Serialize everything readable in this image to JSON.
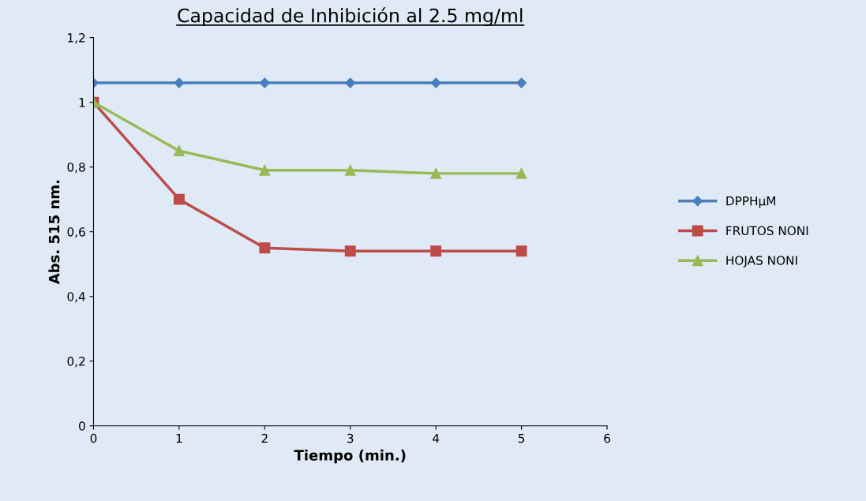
{
  "chart_data": {
    "type": "line",
    "title": "Capacidad de Inhibición al 2.5 mg/ml",
    "xlabel": "Tiempo (min.)",
    "ylabel": "Abs. 515 nm.",
    "x": [
      0,
      1,
      2,
      3,
      4,
      5
    ],
    "series": [
      {
        "name": "DPPHμM",
        "color": "#4a7ebb",
        "marker": "diamond",
        "values": [
          1.06,
          1.06,
          1.06,
          1.06,
          1.06,
          1.06
        ]
      },
      {
        "name": "FRUTOS NONI",
        "color": "#be4b48",
        "marker": "square",
        "values": [
          1.0,
          0.7,
          0.55,
          0.54,
          0.54,
          0.54
        ]
      },
      {
        "name": "HOJAS NONI",
        "color": "#98b954",
        "marker": "triangle",
        "values": [
          1.0,
          0.85,
          0.79,
          0.79,
          0.78,
          0.78
        ]
      }
    ],
    "xlim": [
      0,
      6
    ],
    "xticks": [
      0,
      1,
      2,
      3,
      4,
      5,
      6
    ],
    "ylim": [
      0,
      1.2
    ],
    "yticks": [
      0,
      {
        "value": 0.2,
        "label": "0,2"
      },
      {
        "value": 0.4,
        "label": "0,4"
      },
      {
        "value": 0.6,
        "label": "0,6"
      },
      {
        "value": 0.8,
        "label": "0,8"
      },
      1,
      {
        "value": 1.2,
        "label": "1,2"
      }
    ],
    "grid": false,
    "legend": "right",
    "line_style": "solid"
  }
}
